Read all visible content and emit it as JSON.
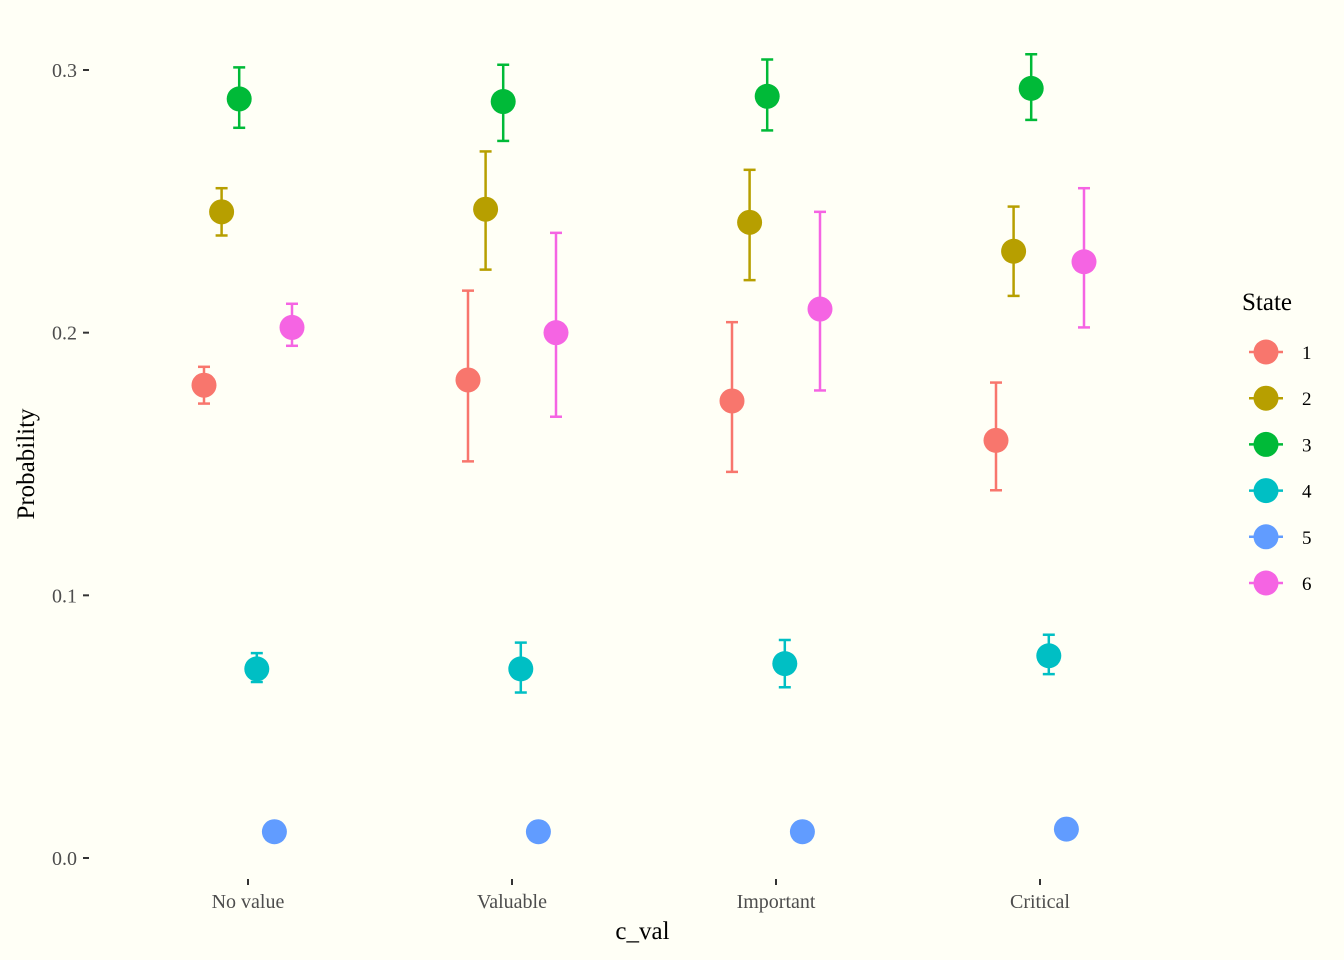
{
  "chart_data": {
    "type": "scatter",
    "title": "",
    "xlabel": "c_val",
    "ylabel": "Probability",
    "categories": [
      "No value",
      "Valuable",
      "Important",
      "Critical"
    ],
    "ylim": [
      -0.004,
      0.31
    ],
    "yticks": [
      {
        "value": 0.0,
        "label": "0.0"
      },
      {
        "value": 0.1,
        "label": "0.1"
      },
      {
        "value": 0.2,
        "label": "0.2"
      },
      {
        "value": 0.3,
        "label": "0.3"
      }
    ],
    "grid": false,
    "error_bars": true,
    "legend": {
      "title": "State",
      "position": "right"
    },
    "series": [
      {
        "name": "1",
        "color": "#F8766D",
        "values": [
          0.18,
          0.182,
          0.174,
          0.159
        ],
        "lower": [
          0.173,
          0.151,
          0.147,
          0.14
        ],
        "upper": [
          0.187,
          0.216,
          0.204,
          0.181
        ]
      },
      {
        "name": "2",
        "color": "#B79F00",
        "values": [
          0.246,
          0.247,
          0.242,
          0.231
        ],
        "lower": [
          0.237,
          0.224,
          0.22,
          0.214
        ],
        "upper": [
          0.255,
          0.269,
          0.262,
          0.248
        ]
      },
      {
        "name": "3",
        "color": "#00BA38",
        "values": [
          0.289,
          0.288,
          0.29,
          0.293
        ],
        "lower": [
          0.278,
          0.273,
          0.277,
          0.281
        ],
        "upper": [
          0.301,
          0.302,
          0.304,
          0.306
        ]
      },
      {
        "name": "4",
        "color": "#00BFC4",
        "values": [
          0.072,
          0.072,
          0.074,
          0.077
        ],
        "lower": [
          0.067,
          0.063,
          0.065,
          0.07
        ],
        "upper": [
          0.078,
          0.082,
          0.083,
          0.085
        ]
      },
      {
        "name": "5",
        "color": "#619CFF",
        "values": [
          0.01,
          0.01,
          0.01,
          0.011
        ],
        "lower": [
          0.01,
          0.01,
          0.01,
          0.011
        ],
        "upper": [
          0.01,
          0.01,
          0.01,
          0.011
        ]
      },
      {
        "name": "6",
        "color": "#F564E3",
        "values": [
          0.202,
          0.2,
          0.209,
          0.227
        ],
        "lower": [
          0.195,
          0.168,
          0.178,
          0.202
        ],
        "upper": [
          0.211,
          0.238,
          0.246,
          0.255
        ]
      }
    ]
  }
}
